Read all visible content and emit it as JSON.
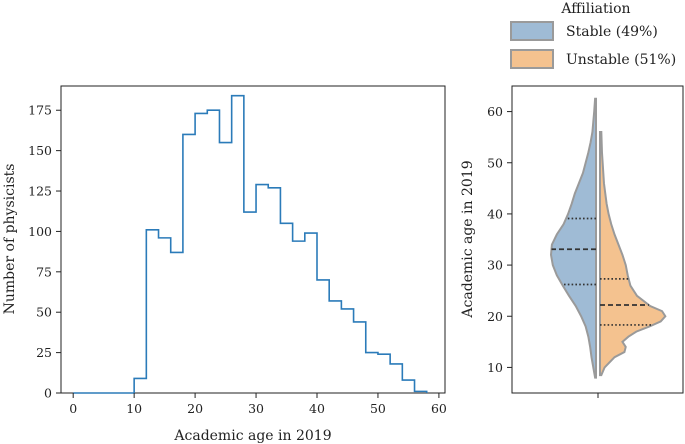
{
  "colors": {
    "stable": "#9fbbd5",
    "unstable": "#f4c28f",
    "outline": "#9a9a9a",
    "histogram_line": "#2b7bb9",
    "axes": "#222222",
    "quartile_line": "#333333"
  },
  "chart_data": [
    {
      "type": "bar",
      "subtype": "step-histogram",
      "xlabel": "Academic age in 2019",
      "ylabel": "Number of physicists",
      "xlim": [
        -2,
        61
      ],
      "ylim": [
        0,
        190
      ],
      "xticks": [
        "0",
        "10",
        "20",
        "30",
        "40",
        "50",
        "60"
      ],
      "yticks": [
        "0",
        "25",
        "50",
        "75",
        "100",
        "125",
        "150",
        "175"
      ],
      "bin_edges": [
        0,
        2,
        4,
        6,
        8,
        10,
        12,
        14,
        16,
        18,
        20,
        22,
        24,
        26,
        28,
        30,
        32,
        34,
        36,
        38,
        40,
        42,
        44,
        46,
        48,
        50,
        52,
        54,
        56,
        58
      ],
      "values": [
        0,
        0,
        0,
        0,
        0,
        9,
        101,
        96,
        87,
        160,
        173,
        175,
        155,
        184,
        112,
        129,
        127,
        105,
        94,
        99,
        70,
        57,
        52,
        44,
        25,
        24,
        18,
        8,
        1
      ],
      "grid": false
    },
    {
      "type": "violin",
      "subtype": "split-violin",
      "ylabel": "Academic age in 2019",
      "ylim": [
        5,
        65
      ],
      "yticks": [
        "10",
        "20",
        "30",
        "40",
        "50",
        "60"
      ],
      "legend": {
        "title": "Affiliation",
        "placement": "top-right",
        "entries": [
          "Stable (49%)",
          "Unstable (51%)"
        ]
      },
      "series": [
        {
          "name": "Stable (49%)",
          "side": "left",
          "range": [
            8,
            62.5
          ],
          "quartiles": [
            26.2,
            33.1,
            39.1
          ],
          "density_profile": [
            [
              8,
              0.02
            ],
            [
              10,
              0.06
            ],
            [
              12,
              0.1
            ],
            [
              14,
              0.13
            ],
            [
              16,
              0.17
            ],
            [
              18,
              0.23
            ],
            [
              20,
              0.33
            ],
            [
              22,
              0.45
            ],
            [
              24,
              0.6
            ],
            [
              26,
              0.74
            ],
            [
              28,
              0.87
            ],
            [
              30,
              0.96
            ],
            [
              32,
              1.0
            ],
            [
              34,
              0.98
            ],
            [
              36,
              0.87
            ],
            [
              38,
              0.72
            ],
            [
              40,
              0.62
            ],
            [
              42,
              0.54
            ],
            [
              44,
              0.47
            ],
            [
              46,
              0.38
            ],
            [
              48,
              0.29
            ],
            [
              50,
              0.23
            ],
            [
              52,
              0.17
            ],
            [
              54,
              0.12
            ],
            [
              56,
              0.08
            ],
            [
              58,
              0.06
            ],
            [
              60,
              0.04
            ],
            [
              62.5,
              0.02
            ]
          ]
        },
        {
          "name": "Unstable (51%)",
          "side": "right",
          "range": [
            8.5,
            56
          ],
          "quartiles": [
            18.3,
            22.2,
            27.3
          ],
          "density_profile": [
            [
              8.5,
              0.02
            ],
            [
              10,
              0.07
            ],
            [
              12,
              0.22
            ],
            [
              13,
              0.37
            ],
            [
              14,
              0.39
            ],
            [
              15,
              0.34
            ],
            [
              16,
              0.43
            ],
            [
              17,
              0.55
            ],
            [
              18,
              0.75
            ],
            [
              19,
              0.92
            ],
            [
              20,
              0.99
            ],
            [
              21,
              0.94
            ],
            [
              22,
              0.76
            ],
            [
              24,
              0.56
            ],
            [
              26,
              0.46
            ],
            [
              28,
              0.42
            ],
            [
              30,
              0.39
            ],
            [
              32,
              0.34
            ],
            [
              34,
              0.28
            ],
            [
              36,
              0.22
            ],
            [
              38,
              0.17
            ],
            [
              40,
              0.13
            ],
            [
              42,
              0.1
            ],
            [
              44,
              0.08
            ],
            [
              46,
              0.06
            ],
            [
              48,
              0.05
            ],
            [
              50,
              0.04
            ],
            [
              52,
              0.03
            ],
            [
              56,
              0.02
            ]
          ]
        }
      ]
    }
  ]
}
